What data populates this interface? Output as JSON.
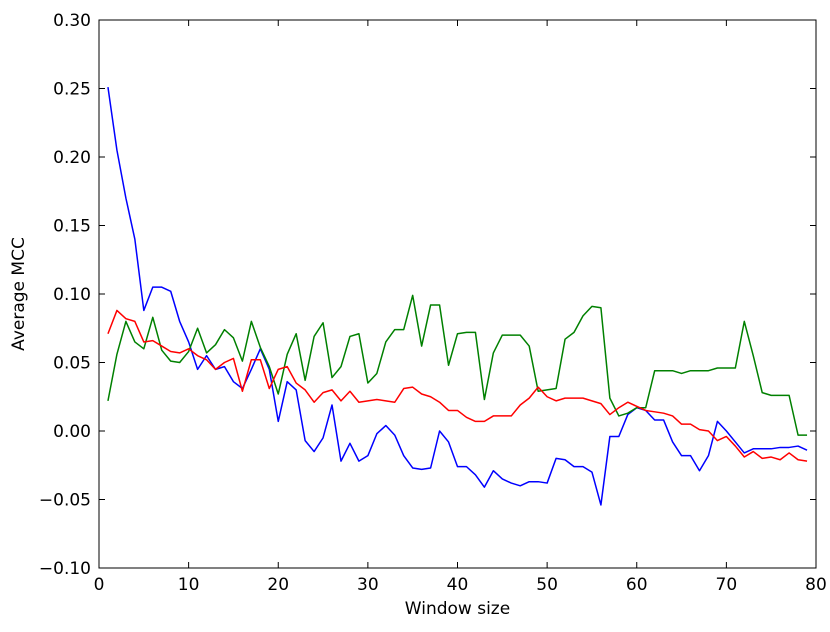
{
  "chart_data": {
    "type": "line",
    "title": "",
    "xlabel": "Window size",
    "ylabel": "Average MCC",
    "xlim": [
      0,
      80
    ],
    "ylim": [
      -0.1,
      0.3
    ],
    "grid": false,
    "legend": "none",
    "xticks": [
      0,
      10,
      20,
      30,
      40,
      50,
      60,
      70,
      80
    ],
    "xtick_labels": [
      "0",
      "10",
      "20",
      "30",
      "40",
      "50",
      "60",
      "70",
      "80"
    ],
    "yticks": [
      -0.1,
      -0.05,
      0.0,
      0.05,
      0.1,
      0.15,
      0.2,
      0.25,
      0.3
    ],
    "ytick_labels": [
      "−0.10",
      "−0.05",
      "0.00",
      "0.05",
      "0.10",
      "0.15",
      "0.20",
      "0.25",
      "0.30"
    ],
    "x": [
      1,
      2,
      3,
      4,
      5,
      6,
      7,
      8,
      9,
      10,
      11,
      12,
      13,
      14,
      15,
      16,
      17,
      18,
      19,
      20,
      21,
      22,
      23,
      24,
      25,
      26,
      27,
      28,
      29,
      30,
      31,
      32,
      33,
      34,
      35,
      36,
      37,
      38,
      39,
      40,
      41,
      42,
      43,
      44,
      45,
      46,
      47,
      48,
      49,
      50,
      51,
      52,
      53,
      54,
      55,
      56,
      57,
      58,
      59,
      60,
      61,
      62,
      63,
      64,
      65,
      66,
      67,
      68,
      69,
      70,
      71,
      72,
      73,
      74,
      75,
      76,
      77,
      78,
      79
    ],
    "series": [
      {
        "color": "#0000ff",
        "values": [
          0.251,
          0.205,
          0.17,
          0.14,
          0.088,
          0.105,
          0.105,
          0.102,
          0.08,
          0.065,
          0.045,
          0.055,
          0.045,
          0.047,
          0.036,
          0.031,
          0.045,
          0.06,
          0.045,
          0.007,
          0.036,
          0.03,
          -0.007,
          -0.015,
          -0.005,
          0.019,
          -0.022,
          -0.009,
          -0.022,
          -0.018,
          -0.002,
          0.004,
          -0.003,
          -0.018,
          -0.027,
          -0.028,
          -0.027,
          0.0,
          -0.008,
          -0.026,
          -0.026,
          -0.032,
          -0.041,
          -0.029,
          -0.035,
          -0.038,
          -0.04,
          -0.037,
          -0.037,
          -0.038,
          -0.02,
          -0.021,
          -0.026,
          -0.026,
          -0.03,
          -0.054,
          -0.004,
          -0.004,
          0.012,
          0.017,
          0.015,
          0.008,
          0.008,
          -0.008,
          -0.018,
          -0.018,
          -0.029,
          -0.018,
          0.007,
          0.0,
          -0.008,
          -0.016,
          -0.013,
          -0.013,
          -0.013,
          -0.012,
          -0.012,
          -0.011,
          -0.014
        ]
      },
      {
        "color": "#008000",
        "values": [
          0.022,
          0.056,
          0.08,
          0.065,
          0.06,
          0.083,
          0.059,
          0.051,
          0.05,
          0.058,
          0.075,
          0.057,
          0.063,
          0.074,
          0.068,
          0.051,
          0.08,
          0.061,
          0.047,
          0.027,
          0.056,
          0.071,
          0.037,
          0.069,
          0.079,
          0.039,
          0.047,
          0.069,
          0.071,
          0.035,
          0.042,
          0.065,
          0.074,
          0.074,
          0.099,
          0.062,
          0.092,
          0.092,
          0.048,
          0.071,
          0.072,
          0.072,
          0.023,
          0.057,
          0.07,
          0.07,
          0.07,
          0.062,
          0.029,
          0.03,
          0.031,
          0.067,
          0.072,
          0.084,
          0.091,
          0.09,
          0.024,
          0.011,
          0.013,
          0.017,
          0.017,
          0.044,
          0.044,
          0.044,
          0.042,
          0.044,
          0.044,
          0.044,
          0.046,
          0.046,
          0.046,
          0.08,
          0.055,
          0.028,
          0.026,
          0.026,
          0.026,
          -0.003,
          -0.003
        ]
      },
      {
        "color": "#ff0000",
        "values": [
          0.071,
          0.088,
          0.082,
          0.08,
          0.065,
          0.066,
          0.062,
          0.058,
          0.057,
          0.06,
          0.055,
          0.052,
          0.045,
          0.05,
          0.053,
          0.029,
          0.052,
          0.052,
          0.031,
          0.045,
          0.047,
          0.035,
          0.03,
          0.021,
          0.028,
          0.03,
          0.022,
          0.029,
          0.021,
          0.022,
          0.023,
          0.022,
          0.021,
          0.031,
          0.032,
          0.027,
          0.025,
          0.021,
          0.015,
          0.015,
          0.01,
          0.007,
          0.007,
          0.011,
          0.011,
          0.011,
          0.019,
          0.024,
          0.032,
          0.025,
          0.022,
          0.024,
          0.024,
          0.024,
          0.022,
          0.02,
          0.012,
          0.017,
          0.021,
          0.018,
          0.015,
          0.014,
          0.013,
          0.011,
          0.005,
          0.005,
          0.001,
          0.0,
          -0.007,
          -0.004,
          -0.011,
          -0.019,
          -0.015,
          -0.02,
          -0.019,
          -0.021,
          -0.016,
          -0.021,
          -0.022
        ]
      }
    ]
  }
}
